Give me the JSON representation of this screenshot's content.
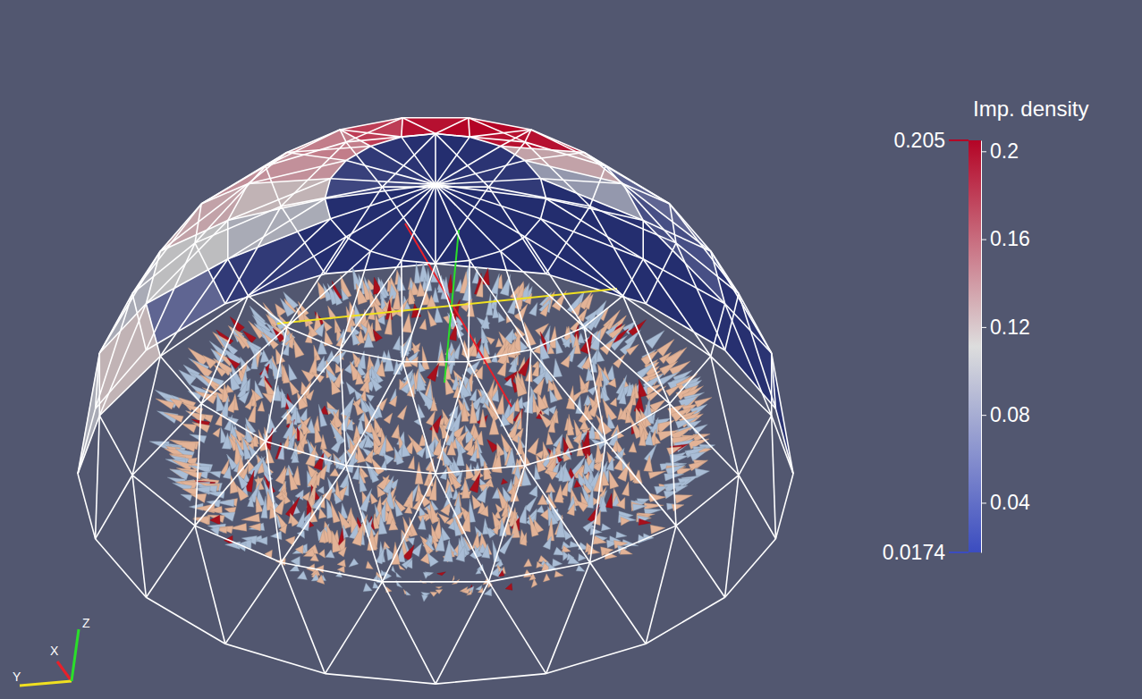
{
  "chart_data": {
    "type": "mesh",
    "colorbar": {
      "title": "Imp. density",
      "range": [
        0.0174,
        0.205
      ],
      "ticks": [
        0.04,
        0.08,
        0.12,
        0.16,
        0.2
      ]
    },
    "cells": [
      [
        0.025,
        0.022,
        0.02,
        0.019,
        0.018,
        0.02,
        0.03,
        0.06,
        0.09,
        0.1
      ],
      [
        0.03,
        0.026,
        0.022,
        0.02,
        0.02,
        0.024,
        0.035,
        0.07,
        0.1,
        0.12
      ],
      [
        0.045,
        0.06,
        0.11,
        0.17,
        0.19,
        0.16,
        0.15,
        0.14,
        0.13,
        0.11
      ],
      [
        0.09,
        0.13,
        0.2,
        0.205,
        0.2,
        0.18,
        0.15,
        0.14,
        0.12,
        0.1
      ],
      [
        0.03,
        0.028,
        0.025,
        0.022,
        0.02,
        0.022,
        0.025,
        0.03,
        0.035,
        0.04
      ]
    ],
    "axes_labels": [
      "X",
      "Y",
      "Z"
    ]
  }
}
